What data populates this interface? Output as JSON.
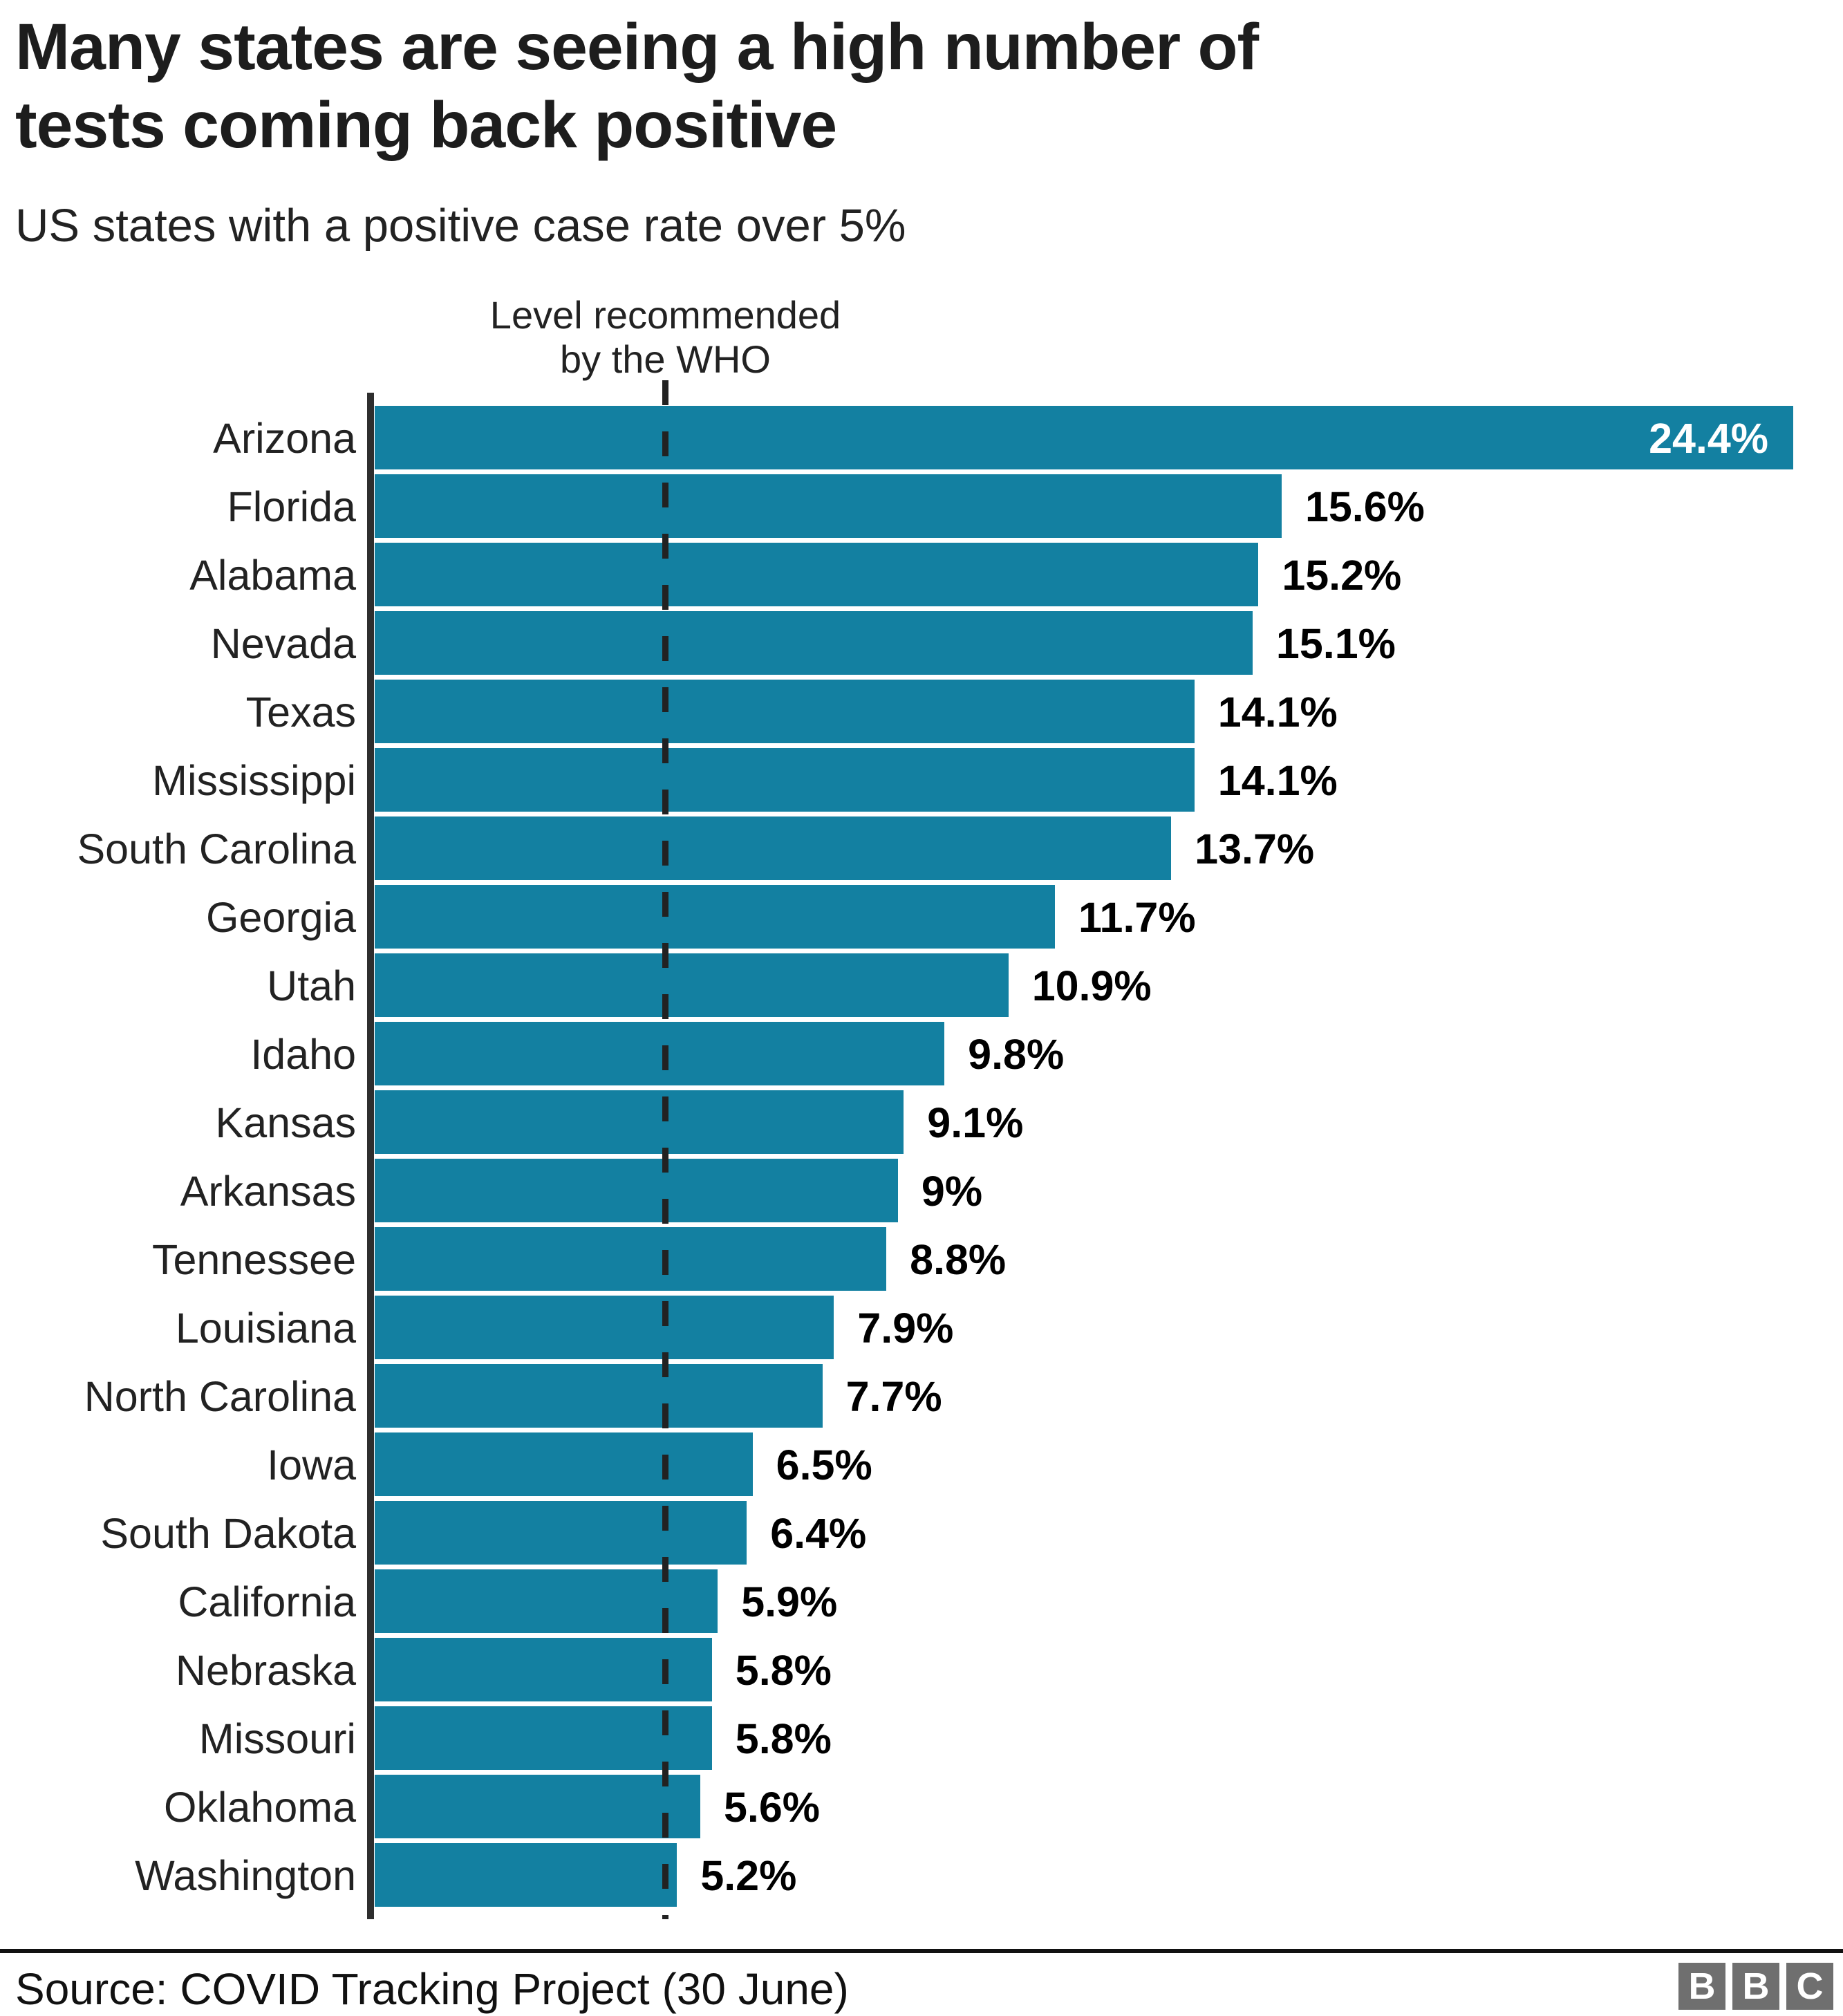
{
  "header": {
    "title_lines": [
      "Many states are seeing a high number of",
      "tests coming back positive"
    ],
    "subtitle": "US states with a positive case rate over 5%"
  },
  "annotation": {
    "lines": [
      "Level recommended",
      "by the WHO"
    ]
  },
  "footer": {
    "source": "Source: COVID Tracking Project (30 June)",
    "logo_letters": [
      "B",
      "B",
      "C"
    ]
  },
  "colors": {
    "bar": "#1380A1",
    "axis": "#2e2e2e",
    "dash": "#222222",
    "text": "#222222",
    "value_label": "#000000",
    "value_label_inside": "#ffffff",
    "divider": "#111111",
    "logo_bg": "#6f6f6f",
    "logo_text": "#ffffff"
  },
  "chart_data": {
    "type": "bar",
    "orientation": "horizontal",
    "title": "Many states are seeing a high number of tests coming back positive",
    "subtitle": "US states with a positive case rate over 5%",
    "unit": "%",
    "xlim": [
      0,
      24.4
    ],
    "grid": false,
    "legend": false,
    "reference_line": {
      "value": 5,
      "label": "Level recommended by the WHO",
      "style": "dashed"
    },
    "categories": [
      "Arizona",
      "Florida",
      "Alabama",
      "Nevada",
      "Texas",
      "Mississippi",
      "South Carolina",
      "Georgia",
      "Utah",
      "Idaho",
      "Kansas",
      "Arkansas",
      "Tennessee",
      "Louisiana",
      "North Carolina",
      "Iowa",
      "South Dakota",
      "California",
      "Nebraska",
      "Missouri",
      "Oklahoma",
      "Washington"
    ],
    "values": [
      24.4,
      15.6,
      15.2,
      15.1,
      14.1,
      14.1,
      13.7,
      11.7,
      10.9,
      9.8,
      9.1,
      9,
      8.8,
      7.9,
      7.7,
      6.5,
      6.4,
      5.9,
      5.8,
      5.8,
      5.6,
      5.2
    ],
    "value_labels": [
      "24.4%",
      "15.6%",
      "15.2%",
      "15.1%",
      "14.1%",
      "14.1%",
      "13.7%",
      "11.7%",
      "10.9%",
      "9.8%",
      "9.1%",
      "9%",
      "8.8%",
      "7.9%",
      "7.7%",
      "6.5%",
      "6.4%",
      "5.9%",
      "5.8%",
      "5.8%",
      "5.6%",
      "5.2%"
    ],
    "source": "Source: COVID Tracking Project (30 June)"
  }
}
